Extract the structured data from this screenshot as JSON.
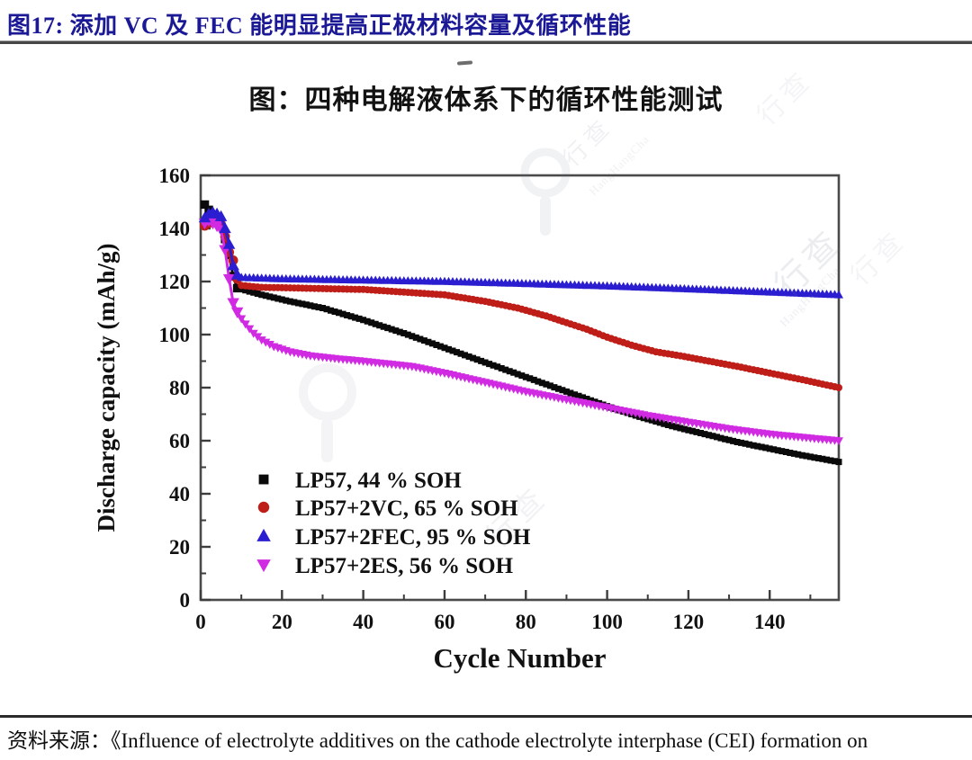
{
  "header": {
    "title": "图17:  添加 VC 及 FEC 能明显提高正极材料容量及循环性能"
  },
  "figure": {
    "title": "图：四种电解液体系下的循环性能测试"
  },
  "source": {
    "text": "资料来源：《Influence of electrolyte additives on the cathode electrolyte interphase (CEI) formation on"
  },
  "watermark": {
    "cn": "行查",
    "en": "HangHangCha"
  },
  "chart_data": {
    "type": "scatter",
    "title": "图：四种电解液体系下的循环性能测试",
    "xlabel": "Cycle Number",
    "ylabel": "Discharge capacity (mAh/g)",
    "xlim": [
      0,
      157
    ],
    "ylim": [
      0,
      160
    ],
    "x_ticks": [
      0,
      20,
      40,
      60,
      80,
      100,
      120,
      140
    ],
    "y_ticks": [
      0,
      20,
      40,
      60,
      80,
      100,
      120,
      140,
      160
    ],
    "grid": false,
    "legend_position": "lower-left",
    "series": [
      {
        "name": "LP57, 44 % SOH",
        "marker": "square",
        "color": "#0a0a0a",
        "points": [
          [
            1,
            149
          ],
          [
            2,
            147
          ],
          [
            3,
            145
          ],
          [
            4,
            143
          ],
          [
            5,
            141
          ],
          [
            6,
            136
          ],
          [
            7,
            130
          ],
          [
            8,
            122
          ],
          [
            9,
            117.5
          ],
          [
            15,
            115
          ],
          [
            22,
            112.5
          ],
          [
            30,
            110
          ],
          [
            40,
            105.5
          ],
          [
            50,
            100.5
          ],
          [
            60,
            95
          ],
          [
            70,
            89.5
          ],
          [
            80,
            84
          ],
          [
            90,
            78.5
          ],
          [
            100,
            73
          ],
          [
            108,
            69
          ],
          [
            116,
            65.5
          ],
          [
            124,
            62.5
          ],
          [
            132,
            59.5
          ],
          [
            140,
            57
          ],
          [
            148,
            54.5
          ],
          [
            157,
            52
          ]
        ]
      },
      {
        "name": "LP57+2VC, 65 % SOH",
        "marker": "circle",
        "color": "#be1d18",
        "points": [
          [
            1,
            141
          ],
          [
            2,
            142
          ],
          [
            3,
            143
          ],
          [
            4,
            142.5
          ],
          [
            5,
            141.5
          ],
          [
            6,
            137
          ],
          [
            7,
            131
          ],
          [
            8,
            128
          ],
          [
            9,
            121
          ],
          [
            10,
            118.5
          ],
          [
            15,
            117.8
          ],
          [
            25,
            117.5
          ],
          [
            40,
            117
          ],
          [
            50,
            116
          ],
          [
            60,
            115
          ],
          [
            70,
            112.5
          ],
          [
            78,
            110
          ],
          [
            85,
            107
          ],
          [
            90,
            104.5
          ],
          [
            95,
            102
          ],
          [
            100,
            99
          ],
          [
            106,
            96
          ],
          [
            112,
            93.5
          ],
          [
            118,
            92
          ],
          [
            125,
            90
          ],
          [
            132,
            88
          ],
          [
            140,
            85.5
          ],
          [
            148,
            83
          ],
          [
            157,
            80
          ]
        ]
      },
      {
        "name": "LP57+2FEC, 95 % SOH",
        "marker": "triangle-up",
        "color": "#2a1ed0",
        "points": [
          [
            1,
            144
          ],
          [
            2,
            145.5
          ],
          [
            3,
            146
          ],
          [
            4,
            145.5
          ],
          [
            5,
            144.5
          ],
          [
            6,
            140
          ],
          [
            7,
            134
          ],
          [
            8,
            126
          ],
          [
            9,
            122.5
          ],
          [
            10,
            121.5
          ],
          [
            20,
            121
          ],
          [
            40,
            120.5
          ],
          [
            60,
            120
          ],
          [
            80,
            119.2
          ],
          [
            100,
            118.3
          ],
          [
            120,
            117.2
          ],
          [
            140,
            116
          ],
          [
            157,
            115
          ]
        ]
      },
      {
        "name": "LP57+2ES, 56 % SOH",
        "marker": "triangle-down",
        "color": "#d02ae2",
        "points": [
          [
            1,
            142
          ],
          [
            2,
            143
          ],
          [
            3,
            142
          ],
          [
            4,
            141
          ],
          [
            5,
            139.5
          ],
          [
            6,
            132
          ],
          [
            7,
            121
          ],
          [
            8,
            112
          ],
          [
            9,
            108.5
          ],
          [
            10,
            106
          ],
          [
            11,
            104
          ],
          [
            13,
            100.5
          ],
          [
            15,
            98
          ],
          [
            18,
            95.5
          ],
          [
            22,
            93.5
          ],
          [
            27,
            92
          ],
          [
            33,
            91
          ],
          [
            40,
            90
          ],
          [
            46,
            89
          ],
          [
            52,
            88
          ],
          [
            60,
            85.5
          ],
          [
            70,
            82
          ],
          [
            80,
            78.5
          ],
          [
            90,
            75.5
          ],
          [
            100,
            72.5
          ],
          [
            110,
            69.5
          ],
          [
            120,
            67
          ],
          [
            130,
            64.5
          ],
          [
            140,
            62.5
          ],
          [
            150,
            61
          ],
          [
            157,
            60
          ]
        ]
      }
    ]
  }
}
